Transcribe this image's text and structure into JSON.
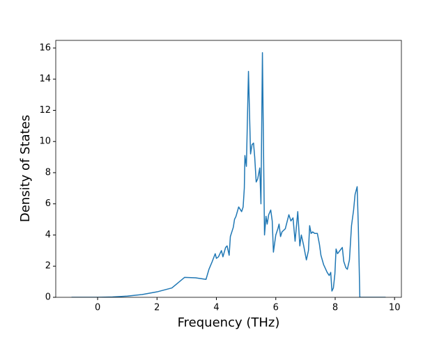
{
  "chart_data": {
    "type": "line",
    "xlabel": "Frequency (THz)",
    "ylabel": "Density of States",
    "x": [
      -0.88,
      0,
      0.5,
      1,
      1.5,
      2,
      2.5,
      2.93,
      3.3,
      3.65,
      3.75,
      3.86,
      3.96,
      4.0,
      4.07,
      4.17,
      4.22,
      4.31,
      4.36,
      4.43,
      4.47,
      4.57,
      4.61,
      4.66,
      4.75,
      4.85,
      4.9,
      4.94,
      4.96,
      5.01,
      5.08,
      5.15,
      5.2,
      5.25,
      5.29,
      5.34,
      5.39,
      5.46,
      5.5,
      5.55,
      5.62,
      5.67,
      5.71,
      5.76,
      5.83,
      5.88,
      5.92,
      6.0,
      6.07,
      6.11,
      6.16,
      6.21,
      6.32,
      6.44,
      6.51,
      6.58,
      6.65,
      6.74,
      6.81,
      6.86,
      6.93,
      7.03,
      7.1,
      7.14,
      7.19,
      7.24,
      7.31,
      7.4,
      7.47,
      7.52,
      7.61,
      7.73,
      7.8,
      7.85,
      7.89,
      7.94,
      7.99,
      8.03,
      8.08,
      8.2,
      8.24,
      8.29,
      8.36,
      8.41,
      8.48,
      8.55,
      8.62,
      8.67,
      8.74,
      8.78,
      8.83,
      9.7
    ],
    "series": [
      {
        "color": "#1f77b4",
        "values": [
          0,
          0,
          0.02,
          0.08,
          0.18,
          0.35,
          0.6,
          1.28,
          1.25,
          1.15,
          1.8,
          2.3,
          2.8,
          2.5,
          2.6,
          3.0,
          2.6,
          3.2,
          3.3,
          2.7,
          3.9,
          4.5,
          5.0,
          5.2,
          5.8,
          5.5,
          5.8,
          7.0,
          9.1,
          8.4,
          14.5,
          9.2,
          9.8,
          9.9,
          9.0,
          7.4,
          7.6,
          8.3,
          6.0,
          15.7,
          4.0,
          5.2,
          4.7,
          5.3,
          5.6,
          4.9,
          2.9,
          4.0,
          4.4,
          4.7,
          3.9,
          4.2,
          4.4,
          5.3,
          4.9,
          5.1,
          3.6,
          5.5,
          3.3,
          4.0,
          3.4,
          2.4,
          3.0,
          4.6,
          4.1,
          4.2,
          4.1,
          4.1,
          3.4,
          2.7,
          2.1,
          1.6,
          1.4,
          1.6,
          0.4,
          0.6,
          1.5,
          3.1,
          2.8,
          3.1,
          3.2,
          2.3,
          1.9,
          1.8,
          2.4,
          4.6,
          5.6,
          6.6,
          7.1,
          4.5,
          0,
          0
        ]
      }
    ],
    "xlim": [
      -1.41,
      10.23
    ],
    "ylim": [
      0,
      16.49
    ],
    "xticks": [
      0,
      2,
      4,
      6,
      8,
      10
    ],
    "yticks": [
      0,
      2,
      4,
      6,
      8,
      10,
      12,
      14,
      16
    ]
  }
}
